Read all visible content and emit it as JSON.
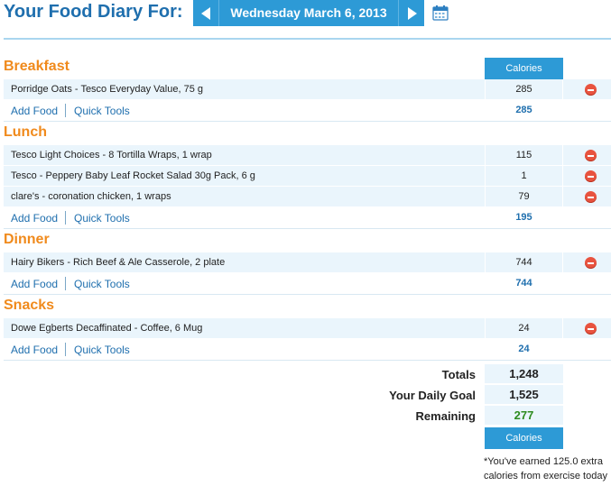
{
  "header": {
    "title": "Your Food Diary For:",
    "date": "Wednesday March 6, 2013"
  },
  "icons": {
    "prev": "chevron-left-icon",
    "next": "chevron-right-icon",
    "calendar": "calendar-icon",
    "delete": "remove-icon"
  },
  "colors": {
    "accent_blue": "#2d9ad6",
    "title_blue": "#1f6fae",
    "meal_orange": "#f08a1c",
    "row_bg": "#eaf5fc",
    "delete_red": "#e8533f",
    "remaining_green": "#2e8b1f"
  },
  "calories_label": "Calories",
  "actions": {
    "add_food": "Add Food",
    "quick_tools": "Quick Tools"
  },
  "meals": [
    {
      "name": "Breakfast",
      "items": [
        {
          "food": "Porridge Oats - Tesco Everyday Value, 75 g",
          "calories": "285"
        }
      ],
      "total": "285"
    },
    {
      "name": "Lunch",
      "items": [
        {
          "food": "Tesco Light Choices - 8 Tortilla Wraps, 1 wrap",
          "calories": "115"
        },
        {
          "food": "Tesco - Peppery Baby Leaf Rocket Salad 30g Pack, 6 g",
          "calories": "1"
        },
        {
          "food": "clare's - coronation chicken, 1 wraps",
          "calories": "79"
        }
      ],
      "total": "195"
    },
    {
      "name": "Dinner",
      "items": [
        {
          "food": "Hairy Bikers - Rich Beef & Ale Casserole, 2 plate",
          "calories": "744"
        }
      ],
      "total": "744"
    },
    {
      "name": "Snacks",
      "items": [
        {
          "food": "Dowe Egberts Decaffinated - Coffee, 6 Mug",
          "calories": "24"
        }
      ],
      "total": "24"
    }
  ],
  "totals": {
    "totals_label": "Totals",
    "totals_value": "1,248",
    "goal_label": "Your Daily Goal",
    "goal_value": "1,525",
    "remaining_label": "Remaining",
    "remaining_value": "277",
    "calories_label": "Calories",
    "exercise_note": "*You've earned 125.0 extra calories from exercise today"
  }
}
